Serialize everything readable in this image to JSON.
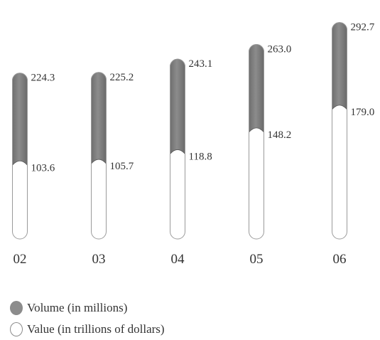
{
  "chart_data": {
    "type": "bar",
    "categories": [
      "02",
      "03",
      "04",
      "05",
      "06"
    ],
    "series": [
      {
        "name": "Volume (in millions)",
        "values": [
          224.3,
          225.2,
          243.1,
          263.0,
          292.7
        ],
        "color": "#8c8c8c"
      },
      {
        "name": "Value (in trillions of dollars)",
        "values": [
          103.6,
          105.7,
          118.8,
          148.2,
          179.0
        ],
        "color": "#ffffff"
      }
    ],
    "value_labels": {
      "volume": [
        "224.3",
        "225.2",
        "243.1",
        "263.0",
        "292.7"
      ],
      "value": [
        "103.6",
        "105.7",
        "118.8",
        "148.2",
        "179.0"
      ]
    },
    "title": "",
    "xlabel": "",
    "ylabel": "",
    "grid": false,
    "legend": "bottom-left"
  }
}
